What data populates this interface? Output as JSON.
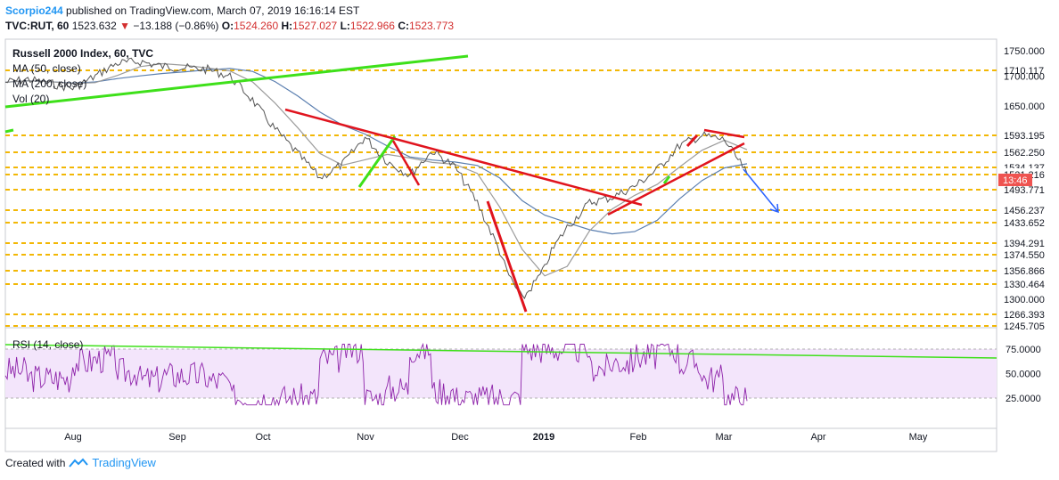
{
  "header": {
    "author": "Scorpio244",
    "published_text": "published on TradingView.com, March 07, 2019 16:16:14 EST",
    "symbol": "TVC:RUT, 60",
    "last": "1523.632",
    "arrow": "▼",
    "change": "−13.188 (−0.86%)",
    "open_label": "O:",
    "open": "1524.260",
    "high_label": "H:",
    "high": "1527.027",
    "low_label": "L:",
    "low": "1522.966",
    "close_label": "C:",
    "close": "1523.773"
  },
  "legend": {
    "title": "Russell 2000 Index, 60, TVC",
    "ma50": "MA (50, close)",
    "ma200": "MA (200, close)",
    "vol": "Vol (20)",
    "rsi": "RSI (14, close)"
  },
  "current_price_tag": "13:46",
  "price_levels": [
    "1710.117",
    "1593.195",
    "1562.250",
    "1534.137",
    "1521.216",
    "1493.771",
    "1456.237",
    "1433.652",
    "1394.291",
    "1374.550",
    "1356.866",
    "1330.464",
    "1266.393",
    "1245.705"
  ],
  "price_axis_ticks": [
    "1750.000",
    "1700.000",
    "1650.000",
    "1300.000"
  ],
  "rsi_axis_ticks": [
    "75.0000",
    "50.0000",
    "25.0000"
  ],
  "time_axis": [
    "Aug",
    "Sep",
    "Oct",
    "Nov",
    "Dec",
    "2019",
    "Feb",
    "Mar",
    "Apr",
    "May"
  ],
  "footer": {
    "created_with": "Created with",
    "brand": "TradingView"
  },
  "colors": {
    "candles": "#555555",
    "ma50": "#9c9c9c",
    "ma200": "#5b7fb0",
    "levels": "#f2b705",
    "green_line": "#3ee01a",
    "red_line": "#e0141e",
    "projection": "#2962ff",
    "rsi": "#8e24aa",
    "rsi_band": "#f3e5fb",
    "price_tag": "#ef5350"
  },
  "chart_data": {
    "type": "line",
    "series_note": "",
    "price": {
      "x": [
        "2019-07-20",
        "2019-07-27",
        "2019-08-03",
        "2019-08-10",
        "2019-08-17",
        "2019-08-24",
        "2019-08-31",
        "2019-09-07",
        "2019-09-14",
        "2019-09-21",
        "2019-09-28",
        "2019-10-05",
        "2019-10-12",
        "2019-10-19",
        "2019-10-26",
        "2019-11-02",
        "2019-11-09",
        "2019-11-16",
        "2019-11-23",
        "2019-11-30",
        "2019-12-07",
        "2019-12-14",
        "2019-12-21",
        "2019-12-28",
        "2019-01-04",
        "2019-01-11",
        "2019-01-18",
        "2019-01-25",
        "2019-02-01",
        "2019-02-08",
        "2019-02-15",
        "2019-02-22",
        "2019-03-01",
        "2019-03-07"
      ],
      "values": [
        1690,
        1695,
        1688,
        1680,
        1700,
        1725,
        1728,
        1718,
        1715,
        1712,
        1700,
        1660,
        1605,
        1560,
        1515,
        1540,
        1590,
        1545,
        1520,
        1565,
        1535,
        1470,
        1380,
        1300,
        1360,
        1425,
        1470,
        1480,
        1500,
        1530,
        1575,
        1593,
        1585,
        1523
      ]
    },
    "ylim": [
      1240,
      1760
    ],
    "rsi_ylim": [
      10,
      90
    ]
  }
}
